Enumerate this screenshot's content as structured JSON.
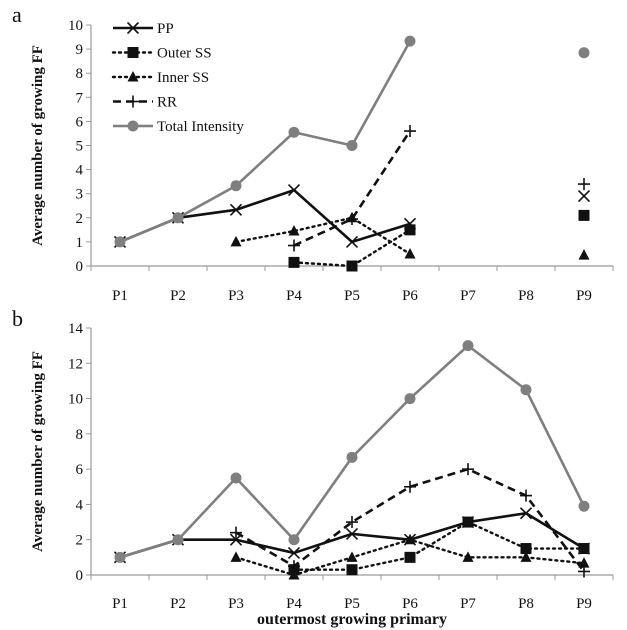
{
  "chart_data": [
    {
      "type": "line",
      "panel_label": "a",
      "ylabel": "Average number of growing FF",
      "xlabel": "",
      "categories": [
        "P1",
        "P2",
        "P3",
        "P4",
        "P5",
        "P6",
        "P7",
        "P8",
        "P9"
      ],
      "ylim": [
        0,
        10
      ],
      "yticks": [
        "0",
        "1",
        "2",
        "3",
        "4",
        "5",
        "6",
        "7",
        "8",
        "9",
        "10"
      ],
      "grid": false,
      "legend": {
        "position": "top-left",
        "entries": [
          "PP",
          "Outer SS",
          "Inner SS",
          "RR",
          "Total Intensity"
        ]
      },
      "series": [
        {
          "name": "PP",
          "values": [
            1,
            2,
            2.33,
            3.15,
            1,
            1.75,
            null,
            null,
            2.9
          ]
        },
        {
          "name": "Outer SS",
          "values": [
            null,
            null,
            null,
            0.15,
            0,
            1.5,
            null,
            null,
            2.1
          ]
        },
        {
          "name": "Inner SS",
          "values": [
            null,
            null,
            1,
            1.45,
            2,
            0.5,
            null,
            null,
            0.45
          ]
        },
        {
          "name": "RR",
          "values": [
            null,
            null,
            null,
            0.85,
            1.95,
            5.6,
            null,
            null,
            3.4
          ]
        },
        {
          "name": "Total Intensity",
          "values": [
            1,
            2,
            3.33,
            5.55,
            5,
            9.33,
            null,
            null,
            8.85
          ]
        }
      ]
    },
    {
      "type": "line",
      "panel_label": "b",
      "ylabel": "Average number of growing FF",
      "xlabel": "outermost growing primary",
      "categories": [
        "P1",
        "P2",
        "P3",
        "P4",
        "P5",
        "P6",
        "P7",
        "P8",
        "P9"
      ],
      "ylim": [
        0,
        14
      ],
      "yticks": [
        "0",
        "2",
        "4",
        "6",
        "8",
        "10",
        "12",
        "14"
      ],
      "grid": false,
      "series": [
        {
          "name": "PP",
          "values": [
            1,
            2,
            2,
            1.25,
            2.33,
            2,
            3,
            3.5,
            1.5
          ]
        },
        {
          "name": "Outer SS",
          "values": [
            null,
            null,
            null,
            0.3,
            0.3,
            1,
            3,
            1.5,
            1.5
          ]
        },
        {
          "name": "Inner SS",
          "values": [
            null,
            null,
            1,
            0,
            1,
            2,
            1,
            1,
            0.67
          ]
        },
        {
          "name": "RR",
          "values": [
            null,
            null,
            2.4,
            0.5,
            3,
            5,
            6,
            4.5,
            0.2
          ]
        },
        {
          "name": "Total Intensity",
          "values": [
            1,
            2,
            5.5,
            2,
            6.67,
            10,
            13,
            10.5,
            3.9
          ]
        }
      ]
    }
  ]
}
